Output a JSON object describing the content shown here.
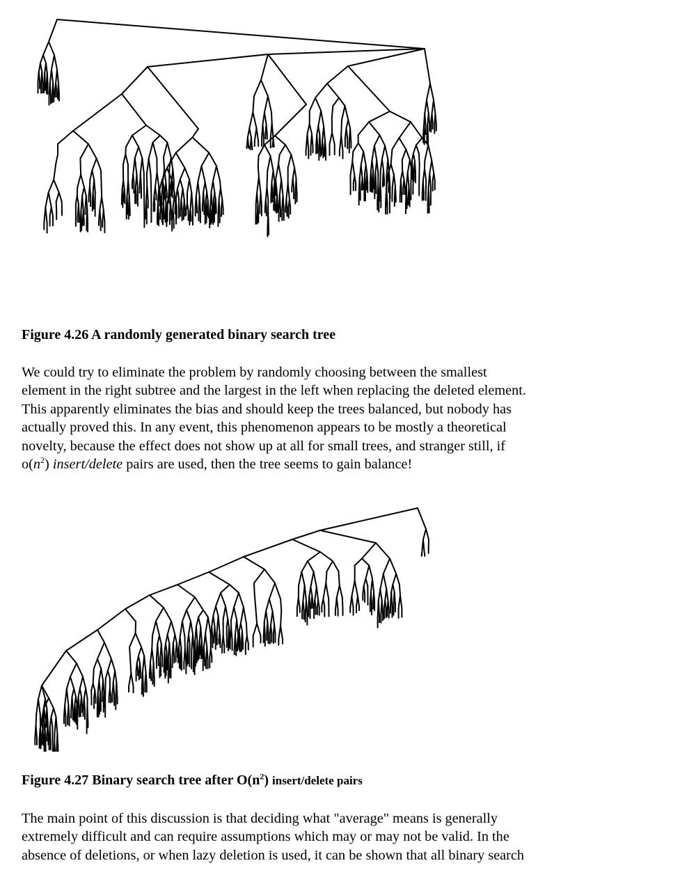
{
  "figure1": {
    "caption": "Figure 4.26 A randomly generated binary search tree"
  },
  "paragraph1": {
    "line1": "We could try to eliminate the problem by randomly choosing between the smallest",
    "line2": "element in the right subtree and the largest in the left when replacing the deleted element.",
    "line3": "This apparently eliminates the bias and should keep the trees balanced, but nobody has",
    "line4": "actually proved this. In any event, this phenomenon appears to be mostly a theoretical",
    "line5": "novelty, because the effect does not show up at all for small trees, and stranger still, if",
    "line6_prefix": "o(",
    "line6_var": "n",
    "line6_exp": "2",
    "line6_close": ")",
    "line6_italic": "insert/delete",
    "line6_suffix": "pairs are used, then the tree seems to gain balance!"
  },
  "figure2": {
    "caption_part1": "Figure 4.27 Binary search tree after O(n",
    "caption_exp": "2",
    "caption_part2": ")",
    "caption_part3": "insert/delete pairs"
  },
  "paragraph2": {
    "line1": "The main point of this discussion is that deciding what \"average\" means is generally",
    "line2": "extremely difficult and can require assumptions which may or may not be valid. In the",
    "line3": "absence of deletions, or when lazy deletion is used, it can be shown that all binary search"
  }
}
